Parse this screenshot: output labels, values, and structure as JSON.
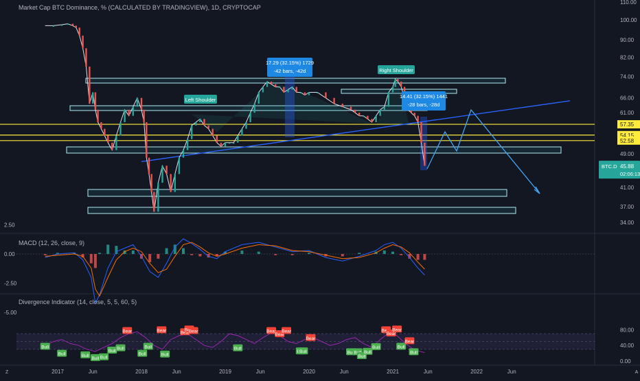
{
  "header": {
    "main_title": "Market Cap BTC Dominance, % (CALCULATED BY TRADINGVIEW), 1D, CRYPTOCAP",
    "macd_title": "MACD (12, 26, close, 9)",
    "rsi_title": "Divergence Indicator (14, close, 5, 5, 60, 5)"
  },
  "colors": {
    "background": "#131722",
    "bull_candle": "#26a69a",
    "bear_candle": "#ef5350",
    "zone_border": "#b2ebf2",
    "key_level": "#ffeb3b",
    "trendline": "#2962ff",
    "projection": "#42a5f5",
    "rsi_line": "#9c27b0",
    "bull_label": "#4caf50",
    "bear_label": "#f44336"
  },
  "chart_data": [
    {
      "type": "line",
      "name": "price",
      "ylim": [
        33,
        111
      ],
      "price_axis_labels": [
        "110.00",
        "100.00",
        "90.00",
        "82.00",
        "74.00",
        "66.00",
        "61.00",
        "57.35",
        "54.15",
        "52.58",
        "49.00",
        "45.88",
        "41.00",
        "37.00",
        "34.00"
      ],
      "x_axis_labels": [
        "2017",
        "Jun",
        "2018",
        "Jun",
        "2019",
        "Jun",
        "2020",
        "Jun",
        "2021",
        "Jun",
        "2022",
        "Jun"
      ],
      "key_levels": [
        57.35,
        54.15,
        52.58
      ],
      "current": {
        "symbol": "BTC.D",
        "value": "45.88",
        "countdown": "02:06:13"
      },
      "annotations": {
        "left_shoulder": "Left Shoulder",
        "right_shoulder": "Right Shoulder",
        "measure1_line1": "17.29 (32.15%) 1729",
        "measure1_line2": "-42 bars, -42d",
        "measure2_line1": "14.41 (32.15%) 1441",
        "measure2_line2": "-28 bars, -28d"
      },
      "series": [
        {
          "x": [
            2016.85,
            2016.95,
            2017.05,
            2017.12,
            2017.18,
            2017.22,
            2017.26,
            2017.3,
            2017.34,
            2017.38,
            2017.42,
            2017.45,
            2017.48,
            2017.52,
            2017.56,
            2017.6,
            2017.65,
            2017.7,
            2017.75,
            2017.8,
            2017.85,
            2017.9,
            2017.95,
            2018.0,
            2018.03,
            2018.06,
            2018.09,
            2018.12,
            2018.15,
            2018.2,
            2018.25,
            2018.3,
            2018.35,
            2018.4,
            2018.45,
            2018.5,
            2018.55,
            2018.6,
            2018.65,
            2018.7,
            2018.75,
            2018.8,
            2018.85,
            2018.9,
            2018.95,
            2019.0,
            2019.05,
            2019.1,
            2019.15,
            2019.2,
            2019.25,
            2019.3,
            2019.35,
            2019.4,
            2019.45,
            2019.5,
            2019.55,
            2019.6,
            2019.65,
            2019.7,
            2019.75,
            2019.8,
            2019.85,
            2019.9,
            2019.95,
            2020.0,
            2020.1,
            2020.2,
            2020.3,
            2020.4,
            2020.5,
            2020.55,
            2020.6,
            2020.65,
            2020.7,
            2020.75,
            2020.8,
            2020.85,
            2020.9,
            2020.95,
            2021.0,
            2021.03,
            2021.06,
            2021.1,
            2021.14,
            2021.18,
            2021.22,
            2021.26,
            2021.3,
            2021.34,
            2021.38
          ],
          "values": [
            97,
            97,
            97.5,
            98,
            97,
            96,
            92,
            86,
            78,
            64,
            68,
            62,
            58,
            56,
            54,
            52,
            50,
            54,
            58,
            62,
            60,
            63,
            66,
            62,
            58,
            48,
            44,
            40,
            36,
            42,
            46,
            44,
            40,
            44,
            48,
            50,
            53,
            57,
            58,
            59,
            57,
            56,
            54,
            52,
            51,
            52,
            52,
            52,
            54,
            56,
            58,
            61,
            64,
            68,
            70,
            72,
            71,
            70,
            70,
            68,
            69,
            70,
            68,
            68,
            67,
            68,
            68,
            66,
            64,
            63,
            62,
            61,
            60,
            60,
            59,
            58,
            60,
            62,
            63,
            68,
            70,
            73,
            72,
            70,
            66,
            62,
            61,
            60,
            58,
            52,
            46
          ]
        }
      ]
    },
    {
      "type": "line",
      "name": "MACD",
      "ylim": [
        -5.5,
        2.8
      ],
      "axis_labels": [
        "2.50",
        "0.00",
        "-2.50",
        "-5.00"
      ],
      "series": [
        {
          "name": "MACD",
          "x": [
            2016.85,
            2017.0,
            2017.2,
            2017.3,
            2017.4,
            2017.45,
            2017.5,
            2017.6,
            2017.7,
            2017.8,
            2017.9,
            2018.0,
            2018.1,
            2018.2,
            2018.3,
            2018.4,
            2018.5,
            2018.6,
            2018.7,
            2018.8,
            2018.9,
            2019.0,
            2019.2,
            2019.4,
            2019.6,
            2019.8,
            2020.0,
            2020.2,
            2020.4,
            2020.6,
            2020.8,
            2020.9,
            2021.0,
            2021.1,
            2021.2,
            2021.3,
            2021.38
          ],
          "values": [
            -0.3,
            0.0,
            0.1,
            -0.5,
            -2.0,
            -4.2,
            -3.5,
            -1.2,
            0.2,
            0.5,
            0.8,
            -0.2,
            -1.5,
            -2.0,
            -0.8,
            0.6,
            1.3,
            0.9,
            0.4,
            -0.2,
            -0.4,
            0.2,
            0.8,
            1.0,
            0.6,
            0.2,
            0.3,
            -0.3,
            -0.6,
            -0.2,
            0.3,
            0.8,
            1.0,
            0.5,
            -0.3,
            -1.2,
            -1.8
          ]
        },
        {
          "name": "Signal",
          "x": [
            2016.85,
            2017.0,
            2017.2,
            2017.3,
            2017.4,
            2017.45,
            2017.5,
            2017.6,
            2017.7,
            2017.8,
            2017.9,
            2018.0,
            2018.1,
            2018.2,
            2018.3,
            2018.4,
            2018.5,
            2018.6,
            2018.7,
            2018.8,
            2018.9,
            2019.0,
            2019.2,
            2019.4,
            2019.6,
            2019.8,
            2020.0,
            2020.2,
            2020.4,
            2020.6,
            2020.8,
            2020.9,
            2021.0,
            2021.1,
            2021.2,
            2021.3,
            2021.38
          ],
          "values": [
            -0.2,
            -0.1,
            0.0,
            -0.2,
            -1.2,
            -3.0,
            -3.6,
            -2.0,
            -0.5,
            0.2,
            0.5,
            0.2,
            -0.8,
            -1.6,
            -1.3,
            -0.2,
            0.8,
            1.0,
            0.6,
            0.1,
            -0.2,
            0.0,
            0.5,
            0.8,
            0.7,
            0.3,
            0.2,
            -0.1,
            -0.4,
            -0.3,
            0.1,
            0.5,
            0.8,
            0.6,
            0.1,
            -0.7,
            -1.3
          ]
        }
      ]
    },
    {
      "type": "line",
      "name": "Divergence Indicator",
      "ylim": [
        0,
        90
      ],
      "axis_labels": [
        "80.00",
        "40.00",
        "0.00"
      ],
      "series": [
        {
          "name": "RSI",
          "x": [
            2016.85,
            2016.95,
            2017.05,
            2017.15,
            2017.25,
            2017.35,
            2017.45,
            2017.55,
            2017.65,
            2017.75,
            2017.85,
            2017.95,
            2018.05,
            2018.15,
            2018.25,
            2018.35,
            2018.45,
            2018.55,
            2018.65,
            2018.75,
            2018.85,
            2018.95,
            2019.05,
            2019.15,
            2019.25,
            2019.35,
            2019.45,
            2019.55,
            2019.65,
            2019.75,
            2019.85,
            2019.95,
            2020.05,
            2020.15,
            2020.25,
            2020.35,
            2020.45,
            2020.55,
            2020.65,
            2020.75,
            2020.85,
            2020.95,
            2021.05,
            2021.15,
            2021.25,
            2021.32,
            2021.38
          ],
          "values": [
            40,
            50,
            55,
            45,
            40,
            30,
            25,
            35,
            45,
            60,
            70,
            75,
            60,
            40,
            30,
            55,
            65,
            70,
            55,
            40,
            35,
            50,
            70,
            65,
            55,
            45,
            60,
            72,
            65,
            50,
            45,
            55,
            60,
            50,
            40,
            45,
            55,
            60,
            45,
            35,
            55,
            72,
            65,
            45,
            30,
            25,
            22
          ]
        }
      ],
      "signals": [
        {
          "text": "Bull",
          "x": 2016.85,
          "y": 38
        },
        {
          "text": "Bull",
          "x": 2017.05,
          "y": 20
        },
        {
          "text": "Bull",
          "x": 2017.33,
          "y": 16
        },
        {
          "text": "Bull",
          "x": 2017.45,
          "y": 9
        },
        {
          "text": "Bull",
          "x": 2017.55,
          "y": 11
        },
        {
          "text": "Bull",
          "x": 2017.65,
          "y": 28
        },
        {
          "text": "Bull",
          "x": 2017.75,
          "y": 34
        },
        {
          "text": "Bear",
          "x": 2017.83,
          "y": 78
        },
        {
          "text": "Bull",
          "x": 2018.01,
          "y": 20
        },
        {
          "text": "Bull",
          "x": 2018.08,
          "y": 38
        },
        {
          "text": "Bear",
          "x": 2018.24,
          "y": 80
        },
        {
          "text": "Bull",
          "x": 2018.28,
          "y": 18
        },
        {
          "text": "Bear",
          "x": 2018.52,
          "y": 75
        },
        {
          "text": "Bear",
          "x": 2018.57,
          "y": 82
        },
        {
          "text": "Bear",
          "x": 2018.62,
          "y": 78
        },
        {
          "text": "Bull",
          "x": 2019.15,
          "y": 34
        },
        {
          "text": "Bear",
          "x": 2019.55,
          "y": 78
        },
        {
          "text": "Bear",
          "x": 2019.65,
          "y": 70
        },
        {
          "text": "Bear",
          "x": 2019.73,
          "y": 78
        },
        {
          "text": "Bear",
          "x": 2020.02,
          "y": 60
        },
        {
          "text": "Bull",
          "x": 2019.9,
          "y": 26
        },
        {
          "text": "Bull",
          "x": 2019.93,
          "y": 26
        },
        {
          "text": "Bull",
          "x": 2020.5,
          "y": 24
        },
        {
          "text": "Bull",
          "x": 2020.58,
          "y": 24
        },
        {
          "text": "Bull",
          "x": 2020.63,
          "y": 14
        },
        {
          "text": "Bull",
          "x": 2020.7,
          "y": 25
        },
        {
          "text": "Bull",
          "x": 2020.8,
          "y": 37
        },
        {
          "text": "Bear",
          "x": 2020.92,
          "y": 80
        },
        {
          "text": "Bear",
          "x": 2020.98,
          "y": 72
        },
        {
          "text": "Bear",
          "x": 2021.05,
          "y": 82
        },
        {
          "text": "Bull",
          "x": 2021.1,
          "y": 38
        },
        {
          "text": "Bear",
          "x": 2021.2,
          "y": 52
        },
        {
          "text": "Bull",
          "x": 2021.25,
          "y": 24
        }
      ]
    }
  ]
}
